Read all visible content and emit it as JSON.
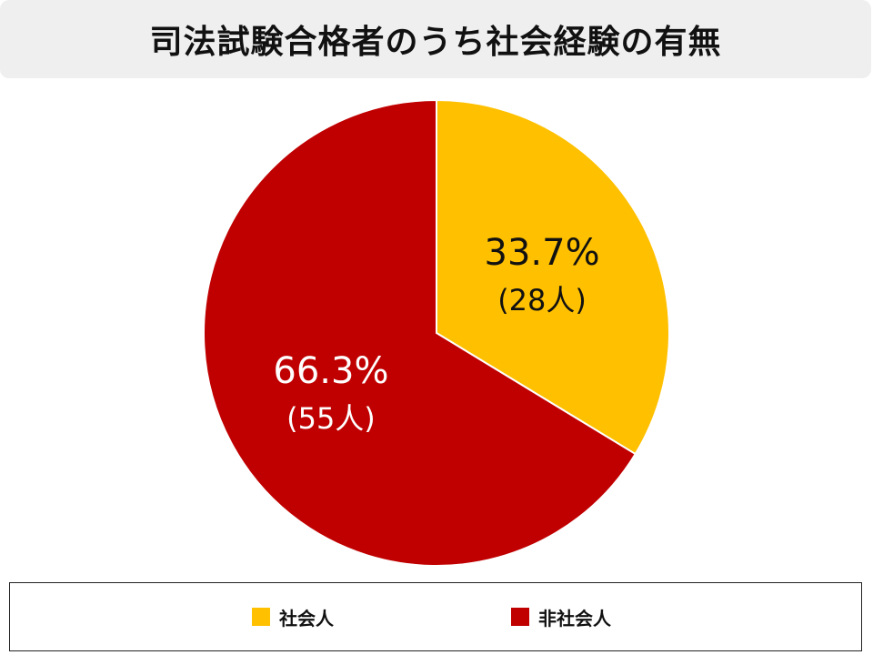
{
  "title": "司法試験合格者のうち社会経験の有無",
  "chart_data": {
    "type": "pie",
    "title": "司法試験合格者のうち社会経験の有無",
    "slices": [
      {
        "label": "社会人",
        "value": 33.7,
        "count_label": "(28人)",
        "pct_label": "33.7%",
        "color": "#FFC000"
      },
      {
        "label": "非社会人",
        "value": 66.3,
        "count_label": "(55人)",
        "pct_label": "66.3%",
        "color": "#C00000"
      }
    ],
    "start_angle_deg": 0,
    "direction": "clockwise",
    "label_colors": [
      "#111111",
      "#ffffff"
    ],
    "legend_position": "bottom"
  }
}
